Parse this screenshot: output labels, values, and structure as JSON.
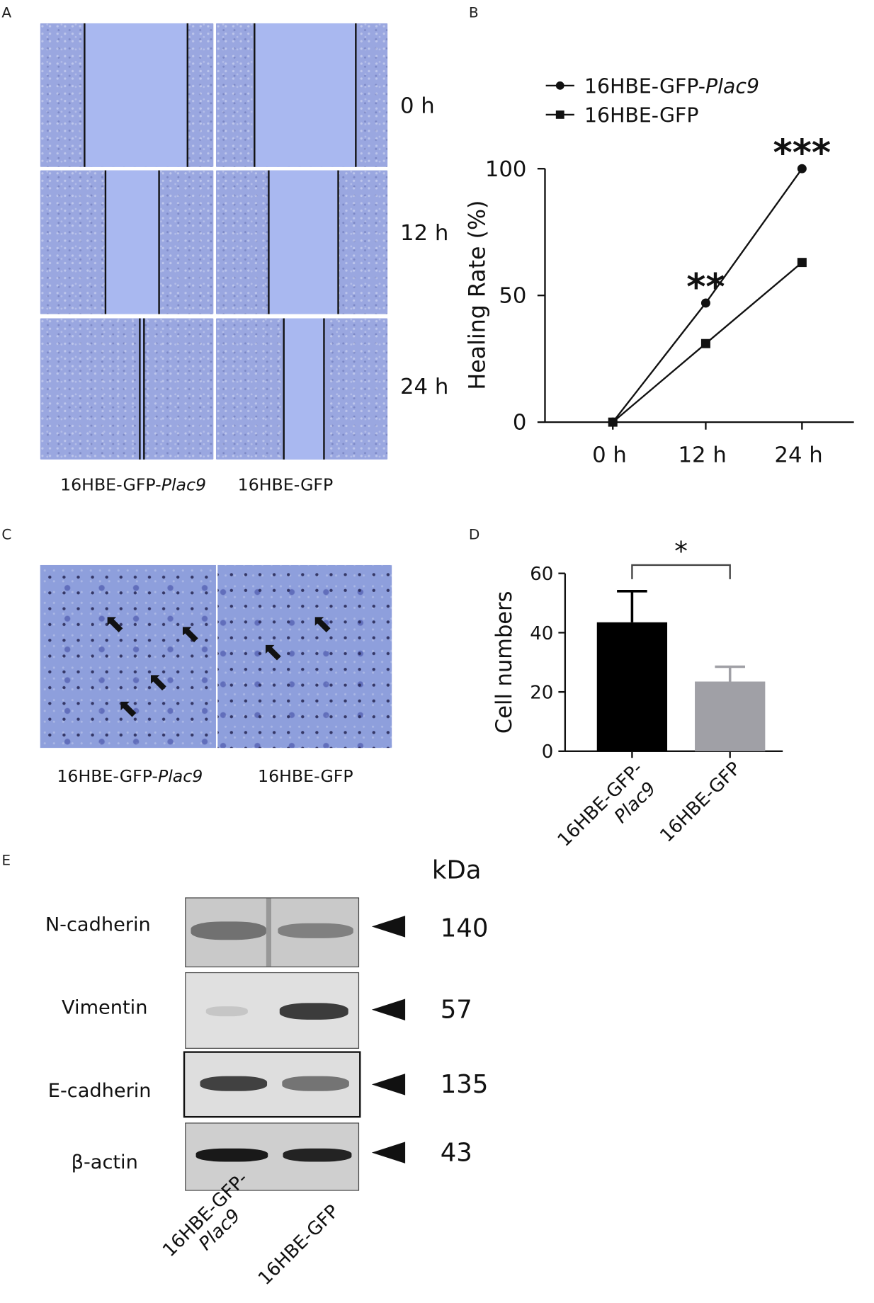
{
  "panels": {
    "a": "A",
    "b": "B",
    "c": "C",
    "d": "D",
    "e": "E"
  },
  "panel_a": {
    "timepoints": [
      "0 h",
      "12 h",
      "24 h"
    ],
    "col1_prefix": "16HBE-GFP-",
    "col1_italic": "Plac9",
    "col2": "16HBE-GFP"
  },
  "panel_c": {
    "col1_prefix": "16HBE-GFP-",
    "col1_italic": "Plac9",
    "col2": "16HBE-GFP",
    "arrow_glyph": "⬉"
  },
  "panel_e": {
    "unit": "kDa",
    "rows": [
      {
        "label": "N-cadherin",
        "kda": "140"
      },
      {
        "label": "Vimentin",
        "kda": "57"
      },
      {
        "label": "E-cadherin",
        "kda": "135"
      },
      {
        "label": "β-actin",
        "kda": "43"
      }
    ],
    "lane1_line1": "16HBE-GFP-",
    "lane1_line2": "Plac9",
    "lane2": "16HBE-GFP"
  },
  "chart_data": [
    {
      "type": "line",
      "x": [
        "0 h",
        "12 h",
        "24 h"
      ],
      "series": [
        {
          "name": "16HBE-GFP-Plac9",
          "name_prefix": "16HBE-GFP-",
          "name_italic": "Plac9",
          "marker": "circle",
          "values": [
            0,
            47,
            100
          ]
        },
        {
          "name": "16HBE-GFP",
          "marker": "square",
          "values": [
            0,
            31,
            63
          ]
        }
      ],
      "ylabel": "Healing Rate (%)",
      "ylim": [
        0,
        100
      ],
      "yticks": [
        "0",
        "50",
        "100"
      ],
      "annotations": [
        {
          "x": "12 h",
          "text": "**"
        },
        {
          "x": "24 h",
          "text": "***"
        }
      ],
      "legend": "top-left",
      "grid": false
    },
    {
      "type": "bar",
      "categories": [
        "16HBE-GFP-Plac9",
        "16HBE-GFP"
      ],
      "category_lines": [
        [
          "16HBE-GFP-",
          "Plac9"
        ],
        [
          "16HBE-GFP"
        ]
      ],
      "values": [
        43.5,
        23.5
      ],
      "errors": [
        10.5,
        5
      ],
      "colors": [
        "#000000",
        "#a0a0a6"
      ],
      "ylabel": "Cell numbers",
      "ylim": [
        0,
        60
      ],
      "yticks": [
        "0",
        "20",
        "40",
        "60"
      ],
      "significance": "*",
      "grid": false
    }
  ]
}
